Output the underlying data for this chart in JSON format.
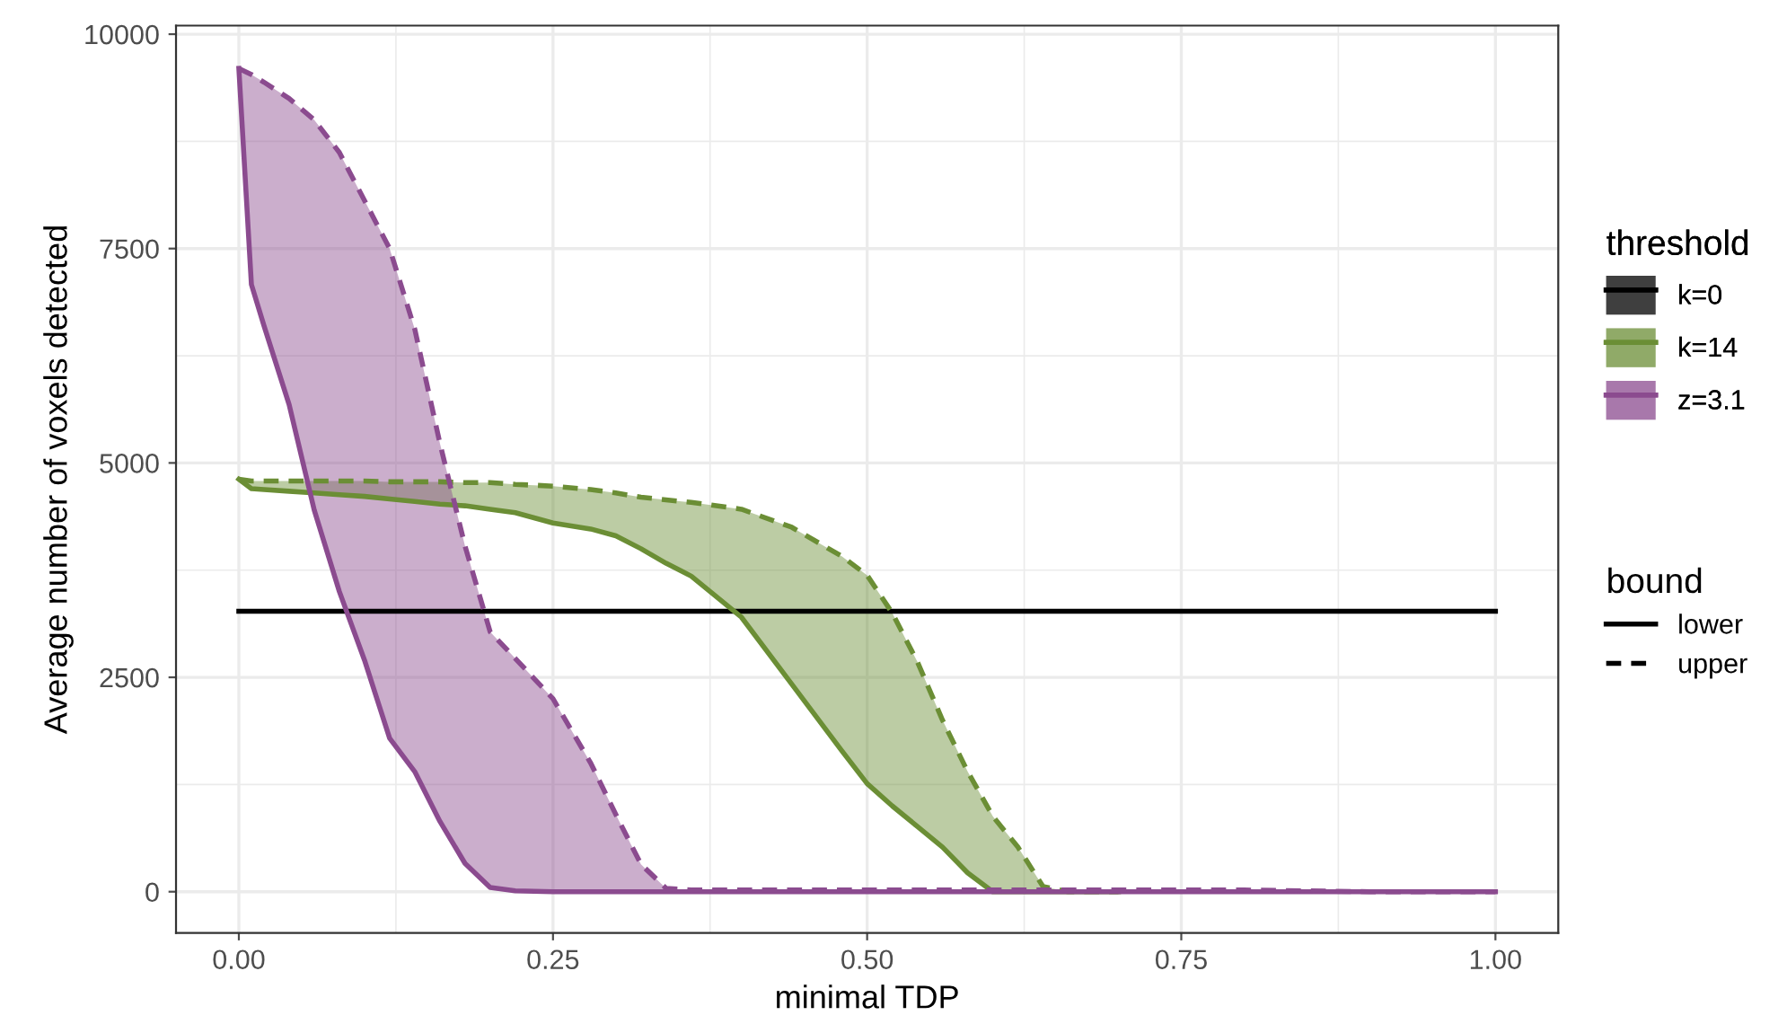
{
  "chart_data": {
    "type": "line",
    "xlabel": "minimal TDP",
    "ylabel": "Average number of voxels detected",
    "legend_title": [
      "threshold",
      "bound"
    ],
    "xlim": [
      -0.05,
      1.05
    ],
    "ylim": [
      -480,
      10100
    ],
    "xticks": [
      {
        "value": 0,
        "label": "0.00"
      },
      {
        "value": 0.25,
        "label": "0.25"
      },
      {
        "value": 0.5,
        "label": "0.50"
      },
      {
        "value": 0.75,
        "label": "0.75"
      },
      {
        "value": 1,
        "label": "1.00"
      }
    ],
    "yticks": [
      0,
      2500,
      5000,
      7500,
      10000
    ],
    "grid": true,
    "legend": "right",
    "series": [
      {
        "name": "k=0",
        "color": "#000000",
        "x": [
          0,
          1
        ],
        "values": [
          3270,
          3270
        ]
      },
      {
        "name": "k=14",
        "color": "#6b8e35",
        "x": [
          0,
          0.01,
          0.02,
          0.04,
          0.06,
          0.08,
          0.1,
          0.12,
          0.14,
          0.16,
          0.18,
          0.2,
          0.22,
          0.25,
          0.28,
          0.3,
          0.32,
          0.34,
          0.36,
          0.4,
          0.44,
          0.48,
          0.5,
          0.52,
          0.54,
          0.56,
          0.58,
          0.6,
          0.62,
          0.64,
          0.66,
          0.7
        ],
        "values": [
          4810,
          4700,
          4690,
          4670,
          4650,
          4630,
          4610,
          4580,
          4550,
          4520,
          4500,
          4460,
          4420,
          4300,
          4230,
          4150,
          4000,
          3830,
          3680,
          3200,
          2420,
          1640,
          1260,
          1000,
          760,
          520,
          220,
          0,
          0,
          0,
          0,
          0
        ],
        "lower": [
          4810,
          4700,
          4690,
          4670,
          4650,
          4630,
          4610,
          4580,
          4550,
          4520,
          4500,
          4460,
          4420,
          4300,
          4230,
          4150,
          4000,
          3830,
          3680,
          3200,
          2420,
          1640,
          1260,
          1000,
          760,
          520,
          220,
          0,
          0,
          0,
          0,
          0
        ],
        "upper": [
          4810,
          4790,
          4790,
          4790,
          4790,
          4790,
          4790,
          4780,
          4780,
          4780,
          4770,
          4770,
          4750,
          4730,
          4690,
          4650,
          4600,
          4570,
          4540,
          4460,
          4250,
          3910,
          3690,
          3250,
          2680,
          2000,
          1400,
          880,
          520,
          60,
          0,
          0
        ]
      },
      {
        "name": "z=3.1",
        "color": "#8b4b8f",
        "x": [
          0,
          0.01,
          0.02,
          0.04,
          0.06,
          0.08,
          0.1,
          0.12,
          0.14,
          0.16,
          0.18,
          0.2,
          0.22,
          0.25,
          0.28,
          0.3,
          0.32,
          0.34,
          0.36,
          0.4,
          0.44,
          0.48,
          0.5,
          0.52,
          0.54,
          0.56,
          0.58,
          0.6,
          0.62,
          0.64,
          0.66,
          0.7,
          0.8,
          0.9,
          1.0
        ],
        "values": [
          9600,
          7080,
          6600,
          5680,
          4450,
          3500,
          2700,
          1790,
          1400,
          820,
          330,
          50,
          10,
          0,
          0,
          0,
          0,
          0,
          0,
          0,
          0,
          0,
          0,
          0,
          0,
          0,
          0,
          0,
          0,
          0,
          0,
          0,
          0,
          0,
          0
        ],
        "lower": [
          9600,
          7080,
          6600,
          5680,
          4450,
          3500,
          2700,
          1790,
          1400,
          820,
          330,
          50,
          10,
          0,
          0,
          0,
          0,
          0,
          0,
          0,
          0,
          0,
          0,
          0,
          0,
          0,
          0,
          0,
          0,
          0,
          0,
          0,
          0,
          0,
          0
        ],
        "upper": [
          9600,
          9530,
          9440,
          9250,
          9000,
          8620,
          8060,
          7500,
          6560,
          5230,
          4030,
          3030,
          2720,
          2250,
          1500,
          900,
          320,
          40,
          20,
          20,
          20,
          20,
          20,
          20,
          20,
          20,
          20,
          20,
          20,
          20,
          20,
          20,
          20,
          0,
          0
        ]
      },
      {
        "name": "lower",
        "type": "line",
        "color": "#000000",
        "line_style": "solid"
      },
      {
        "name": "upper",
        "type": "line",
        "color": "#000000",
        "line_style": "dashed"
      }
    ]
  }
}
